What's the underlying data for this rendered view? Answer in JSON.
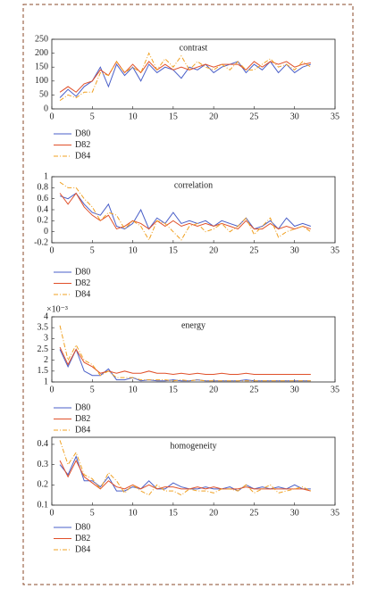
{
  "chart_data": [
    {
      "type": "line",
      "title": "contrast",
      "x": [
        1,
        2,
        3,
        4,
        5,
        6,
        7,
        8,
        9,
        10,
        11,
        12,
        13,
        14,
        15,
        16,
        17,
        18,
        19,
        20,
        21,
        22,
        23,
        24,
        25,
        26,
        27,
        28,
        29,
        30,
        31,
        32
      ],
      "xlim": [
        0,
        35
      ],
      "xticks": [
        0,
        5,
        10,
        15,
        20,
        25,
        30,
        35
      ],
      "ylim": [
        0,
        250
      ],
      "yticks": [
        0,
        50,
        100,
        150,
        200,
        250
      ],
      "series": [
        {
          "name": "D80",
          "color": "#4a5fc8",
          "linestyle": "solid",
          "values": [
            40,
            70,
            45,
            80,
            100,
            150,
            80,
            160,
            120,
            150,
            100,
            160,
            130,
            150,
            140,
            110,
            150,
            140,
            160,
            130,
            150,
            160,
            170,
            130,
            160,
            140,
            170,
            130,
            160,
            130,
            150,
            160
          ]
        },
        {
          "name": "D82",
          "color": "#e0502a",
          "linestyle": "solid",
          "values": [
            60,
            80,
            60,
            90,
            100,
            140,
            120,
            170,
            130,
            160,
            130,
            170,
            140,
            160,
            140,
            150,
            140,
            150,
            160,
            150,
            160,
            160,
            160,
            140,
            170,
            150,
            170,
            160,
            170,
            150,
            160,
            165
          ]
        },
        {
          "name": "D84",
          "color": "#f0a020",
          "linestyle": "dashdot",
          "values": [
            30,
            50,
            40,
            60,
            60,
            130,
            120,
            170,
            130,
            150,
            130,
            200,
            140,
            180,
            150,
            190,
            140,
            170,
            150,
            140,
            160,
            140,
            170,
            140,
            140,
            160,
            180,
            150,
            160,
            140,
            170,
            150
          ]
        }
      ]
    },
    {
      "type": "line",
      "title": "correlation",
      "x": [
        1,
        2,
        3,
        4,
        5,
        6,
        7,
        8,
        9,
        10,
        11,
        12,
        13,
        14,
        15,
        16,
        17,
        18,
        19,
        20,
        21,
        22,
        23,
        24,
        25,
        26,
        27,
        28,
        29,
        30,
        31,
        32
      ],
      "xlim": [
        0,
        35
      ],
      "xticks": [
        0,
        5,
        10,
        15,
        20,
        25,
        30,
        35
      ],
      "ylim": [
        -0.2,
        1
      ],
      "yticks": [
        -0.2,
        0,
        0.2,
        0.4,
        0.6,
        0.8,
        1
      ],
      "series": [
        {
          "name": "D80",
          "color": "#4a5fc8",
          "linestyle": "solid",
          "values": [
            0.65,
            0.6,
            0.7,
            0.5,
            0.35,
            0.3,
            0.5,
            0.1,
            0.05,
            0.15,
            0.4,
            0.05,
            0.25,
            0.15,
            0.35,
            0.15,
            0.2,
            0.15,
            0.2,
            0.1,
            0.2,
            0.15,
            0.1,
            0.25,
            0.05,
            0.1,
            0.2,
            0.05,
            0.25,
            0.1,
            0.15,
            0.1
          ]
        },
        {
          "name": "D82",
          "color": "#e0502a",
          "linestyle": "solid",
          "values": [
            0.7,
            0.5,
            0.7,
            0.45,
            0.3,
            0.2,
            0.3,
            0.05,
            0.1,
            0.2,
            0.15,
            0.05,
            0.2,
            0.1,
            0.2,
            0.1,
            0.15,
            0.1,
            0.15,
            0.1,
            0.15,
            0.1,
            0.05,
            0.2,
            0.05,
            0.05,
            0.15,
            0.05,
            0.1,
            0.05,
            0.1,
            0.05
          ]
        },
        {
          "name": "D84",
          "color": "#f0a020",
          "linestyle": "dashdot",
          "values": [
            0.9,
            0.8,
            0.8,
            0.6,
            0.45,
            0.2,
            0.35,
            0.3,
            0.05,
            0.2,
            0.1,
            -0.15,
            0.2,
            0.15,
            0,
            -0.15,
            0.1,
            0.15,
            0,
            0.05,
            0.15,
            0,
            0.1,
            0.25,
            -0.05,
            0.1,
            0.25,
            -0.1,
            0,
            0.05,
            0.1,
            0
          ]
        }
      ]
    },
    {
      "type": "line",
      "title": "energy",
      "axis_exponent": "×10⁻³",
      "x": [
        1,
        2,
        3,
        4,
        5,
        6,
        7,
        8,
        9,
        10,
        11,
        12,
        13,
        14,
        15,
        16,
        17,
        18,
        19,
        20,
        21,
        22,
        23,
        24,
        25,
        26,
        27,
        28,
        29,
        30,
        31,
        32
      ],
      "xlim": [
        0,
        35
      ],
      "xticks": [
        0,
        5,
        10,
        15,
        20,
        25,
        30,
        35
      ],
      "ylim": [
        1,
        4
      ],
      "yticks": [
        1,
        1.5,
        2,
        2.5,
        3,
        3.5,
        4
      ],
      "series": [
        {
          "name": "D80",
          "color": "#4a5fc8",
          "linestyle": "solid",
          "values": [
            2.5,
            1.7,
            2.5,
            1.5,
            1.3,
            1.3,
            1.6,
            1.1,
            1.1,
            1.2,
            1.05,
            1.1,
            1.05,
            1.05,
            1.1,
            1.05,
            1.05,
            1.1,
            1.05,
            1.05,
            1.05,
            1.05,
            1.05,
            1.1,
            1.05,
            1.05,
            1.05,
            1.05,
            1.05,
            1.05,
            1.05,
            1.05
          ]
        },
        {
          "name": "D82",
          "color": "#e0502a",
          "linestyle": "solid",
          "values": [
            2.6,
            1.8,
            2.5,
            1.9,
            1.7,
            1.4,
            1.5,
            1.4,
            1.5,
            1.4,
            1.4,
            1.5,
            1.4,
            1.4,
            1.35,
            1.4,
            1.35,
            1.4,
            1.35,
            1.35,
            1.4,
            1.35,
            1.35,
            1.4,
            1.35,
            1.35,
            1.35,
            1.35,
            1.35,
            1.35,
            1.35,
            1.35
          ]
        },
        {
          "name": "D84",
          "color": "#f0a020",
          "linestyle": "dashdot",
          "values": [
            3.6,
            2.0,
            2.7,
            2.0,
            1.8,
            1.3,
            1.5,
            1.2,
            1.2,
            1.2,
            1.1,
            1.1,
            1.1,
            1.1,
            1.05,
            1.1,
            1.05,
            1.1,
            1.05,
            1.05,
            1.05,
            1.05,
            1.05,
            1.05,
            1.05,
            1.05,
            1.05,
            1.05,
            1.05,
            1.05,
            1.05,
            1.05
          ]
        }
      ]
    },
    {
      "type": "line",
      "title": "homogeneity",
      "x": [
        1,
        2,
        3,
        4,
        5,
        6,
        7,
        8,
        9,
        10,
        11,
        12,
        13,
        14,
        15,
        16,
        17,
        18,
        19,
        20,
        21,
        22,
        23,
        24,
        25,
        26,
        27,
        28,
        29,
        30,
        31,
        32
      ],
      "xlim": [
        0,
        35
      ],
      "xticks": [
        0,
        5,
        10,
        15,
        20,
        25,
        30,
        35
      ],
      "ylim": [
        0.1,
        0.435
      ],
      "yticks": [
        0.1,
        0.2,
        0.3,
        0.4
      ],
      "series": [
        {
          "name": "D80",
          "color": "#4a5fc8",
          "linestyle": "solid",
          "values": [
            0.3,
            0.25,
            0.34,
            0.22,
            0.22,
            0.19,
            0.24,
            0.17,
            0.17,
            0.19,
            0.18,
            0.22,
            0.18,
            0.18,
            0.21,
            0.19,
            0.18,
            0.18,
            0.19,
            0.18,
            0.18,
            0.19,
            0.17,
            0.2,
            0.18,
            0.19,
            0.18,
            0.19,
            0.18,
            0.2,
            0.18,
            0.18
          ]
        },
        {
          "name": "D82",
          "color": "#e0502a",
          "linestyle": "solid",
          "values": [
            0.32,
            0.24,
            0.32,
            0.24,
            0.21,
            0.18,
            0.22,
            0.19,
            0.18,
            0.2,
            0.18,
            0.2,
            0.18,
            0.19,
            0.19,
            0.18,
            0.18,
            0.19,
            0.18,
            0.19,
            0.18,
            0.18,
            0.18,
            0.19,
            0.18,
            0.18,
            0.18,
            0.18,
            0.18,
            0.18,
            0.18,
            0.17
          ]
        },
        {
          "name": "D84",
          "color": "#f0a020",
          "linestyle": "dashdot",
          "values": [
            0.42,
            0.3,
            0.36,
            0.25,
            0.23,
            0.18,
            0.26,
            0.22,
            0.16,
            0.2,
            0.17,
            0.15,
            0.2,
            0.17,
            0.17,
            0.15,
            0.18,
            0.17,
            0.17,
            0.16,
            0.18,
            0.18,
            0.17,
            0.2,
            0.16,
            0.18,
            0.2,
            0.16,
            0.17,
            0.18,
            0.19,
            0.17
          ]
        }
      ]
    }
  ]
}
